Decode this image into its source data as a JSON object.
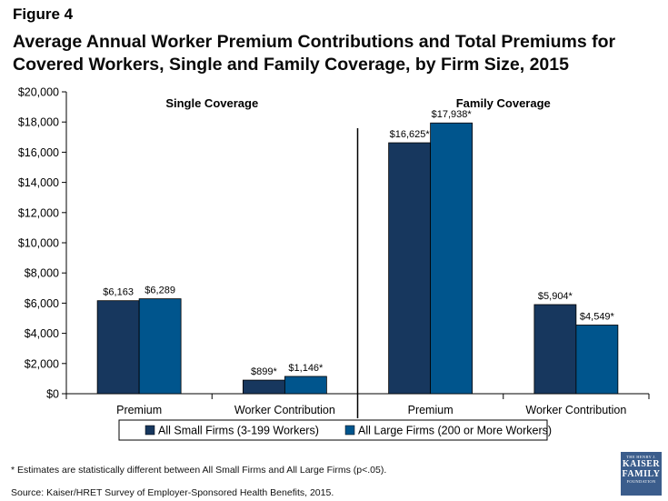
{
  "figure_label": "Figure 4",
  "title": "Average Annual Worker Premium Contributions and Total Premiums for Covered Workers, Single and Family Coverage, by Firm Size, 2015",
  "footnote": "* Estimates are statistically different between All Small Firms and All Large Firms (p<.05).",
  "source": "Source:  Kaiser/HRET Survey of Employer-Sponsored Health Benefits, 2015.",
  "logo": {
    "line1": "THE HENRY J.",
    "line2": "KAISER",
    "line3": "FAMILY",
    "line4": "FOUNDATION"
  },
  "colors": {
    "small_firms": "#17375e",
    "large_firms": "#00558d",
    "axis": "#000000"
  },
  "chart_data": {
    "type": "bar",
    "title": "Average Annual Worker Premium Contributions and Total Premiums for Covered Workers, Single and Family Coverage, by Firm Size, 2015",
    "xlabel": "",
    "ylabel": "",
    "ylim": [
      0,
      20000
    ],
    "yticks": [
      "$0",
      "$2,000",
      "$4,000",
      "$6,000",
      "$8,000",
      "$10,000",
      "$12,000",
      "$14,000",
      "$16,000",
      "$18,000",
      "$20,000"
    ],
    "panels": [
      "Single Coverage",
      "Family Coverage"
    ],
    "categories": [
      "Premium",
      "Worker Contribution",
      "Premium",
      "Worker Contribution"
    ],
    "series": [
      {
        "name": "All Small Firms (3-199 Workers)",
        "values": [
          6163,
          899,
          16625,
          5904
        ],
        "labels": [
          "$6,163",
          "$899*",
          "$16,625*",
          "$5,904*"
        ]
      },
      {
        "name": "All Large Firms (200 or More Workers)",
        "values": [
          6289,
          1146,
          17938,
          4549
        ],
        "labels": [
          "$6,289",
          "$1,146*",
          "$17,938*",
          "$4,549*"
        ]
      }
    ],
    "legend": "bottom",
    "grid": false
  }
}
